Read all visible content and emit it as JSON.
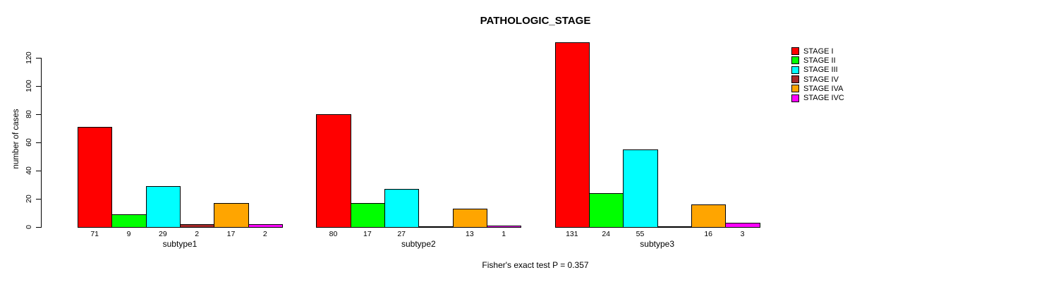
{
  "chart_data": {
    "type": "bar",
    "title": "PATHOLOGIC_STAGE",
    "ylabel": "number of cases",
    "footnote": "Fisher's exact test P = 0.357",
    "categories": [
      "subtype1",
      "subtype2",
      "subtype3"
    ],
    "series": [
      {
        "name": "STAGE I",
        "color": "#FF0000",
        "values": [
          71,
          80,
          131
        ]
      },
      {
        "name": "STAGE II",
        "color": "#00FF00",
        "values": [
          9,
          17,
          24
        ]
      },
      {
        "name": "STAGE III",
        "color": "#00FFFF",
        "values": [
          29,
          27,
          55
        ]
      },
      {
        "name": "STAGE IV",
        "color": "#A52A2A",
        "values": [
          2,
          0,
          0
        ]
      },
      {
        "name": "STAGE IVA",
        "color": "#FFA500",
        "values": [
          17,
          13,
          16
        ]
      },
      {
        "name": "STAGE IVC",
        "color": "#FF00FF",
        "values": [
          2,
          1,
          3
        ]
      }
    ],
    "yticks": [
      0,
      20,
      40,
      60,
      80,
      100,
      120
    ],
    "ylim": [
      0,
      120
    ],
    "bar_value_labels_shown": true,
    "grid": false,
    "legend_position": "right"
  }
}
